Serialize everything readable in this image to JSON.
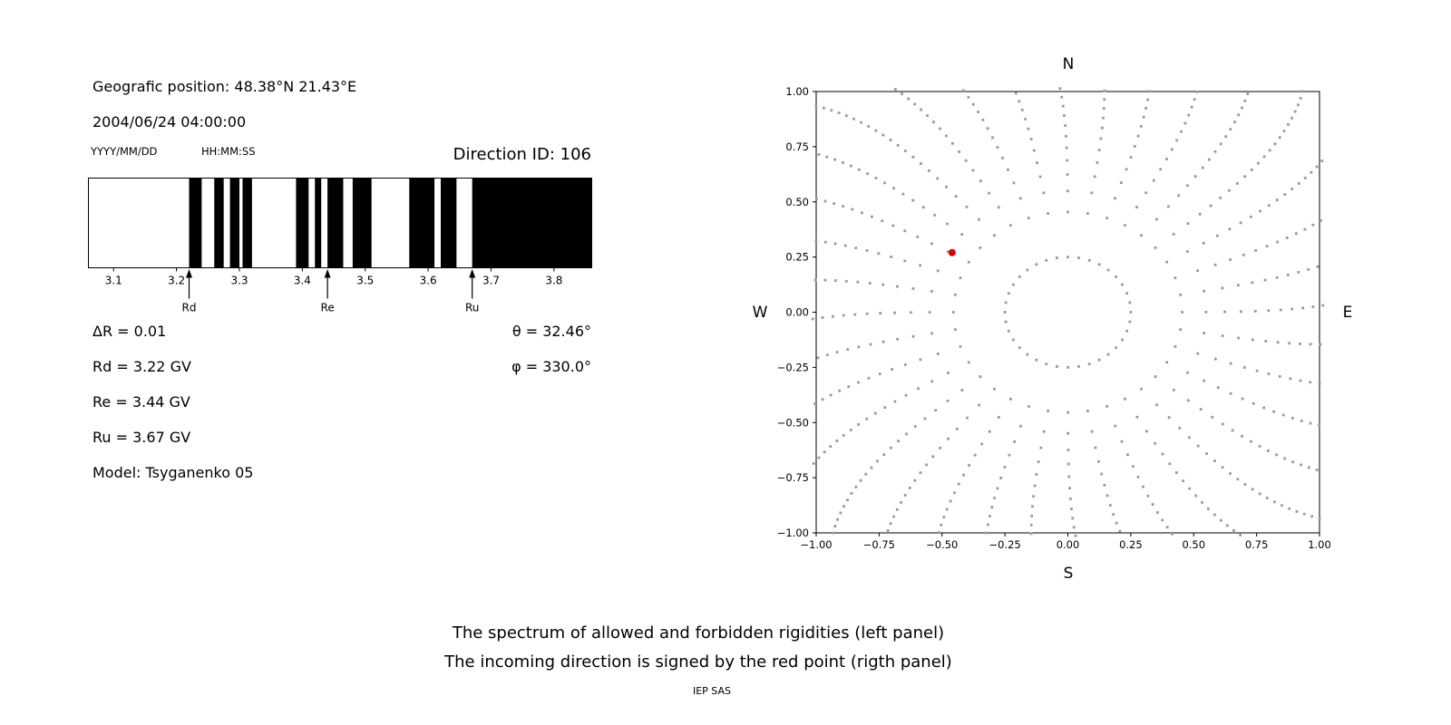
{
  "header": {
    "position": "Geografic position: 48.38°N 21.43°E",
    "datetime": "2004/06/24 04:00:00",
    "date_format": "YYYY/MM/DD",
    "time_format": "HH:MM:SS",
    "direction_id": "Direction ID: 106"
  },
  "parameters": {
    "delta_r": "ΔR = 0.01",
    "rd": "Rd = 3.22 GV",
    "re": "Re = 3.44 GV",
    "ru": "Ru = 3.67 GV",
    "model": "Model: Tsyganenko 05",
    "theta": "θ = 32.46°",
    "phi": "φ = 330.0°"
  },
  "caption": {
    "line1": "The spectrum of allowed and forbidden rigidities (left panel)",
    "line2": "The incoming direction is signed by the red point (rigth panel)",
    "credit": "IEP SAS"
  },
  "chart_data": [
    {
      "type": "bar",
      "subtype": "barcode-rigidity-spectrum",
      "xlim": [
        3.06,
        3.86
      ],
      "xticks": [
        3.1,
        3.2,
        3.3,
        3.4,
        3.5,
        3.6,
        3.7,
        3.8
      ],
      "xtick_labels": [
        "3.1",
        "3.2",
        "3.3",
        "3.4",
        "3.5",
        "3.6",
        "3.7",
        "3.8"
      ],
      "delta_r_gv": 0.01,
      "allowed_bands_gv": [
        [
          3.22,
          3.24
        ],
        [
          3.26,
          3.275
        ],
        [
          3.285,
          3.3
        ],
        [
          3.305,
          3.32
        ],
        [
          3.39,
          3.41
        ],
        [
          3.42,
          3.43
        ],
        [
          3.44,
          3.465
        ],
        [
          3.48,
          3.51
        ],
        [
          3.57,
          3.61
        ],
        [
          3.62,
          3.645
        ],
        [
          3.67,
          3.86
        ]
      ],
      "markers": [
        {
          "label": "Rd",
          "value": 3.22
        },
        {
          "label": "Re",
          "value": 3.44
        },
        {
          "label": "Ru",
          "value": 3.67
        }
      ],
      "bar_color": "#000000",
      "background": "#ffffff"
    },
    {
      "type": "scatter",
      "subtype": "incoming-direction-map",
      "xlim": [
        -1,
        1
      ],
      "ylim": [
        -1,
        1
      ],
      "xticks": [
        -1,
        -0.75,
        -0.5,
        -0.25,
        0,
        0.25,
        0.5,
        0.75,
        1
      ],
      "xtick_labels": [
        "−1.00",
        "−0.75",
        "−0.50",
        "−0.25",
        "0.00",
        "0.25",
        "0.50",
        "0.75",
        "1.00"
      ],
      "yticks": [
        -1,
        -0.75,
        -0.5,
        -0.25,
        0,
        0.25,
        0.5,
        0.75,
        1
      ],
      "ytick_labels": [
        "−1.00",
        "−0.75",
        "−0.50",
        "−0.25",
        "0.00",
        "0.25",
        "0.50",
        "0.75",
        "1.00"
      ],
      "compass": {
        "top": "N",
        "bottom": "S",
        "left": "W",
        "right": "E"
      },
      "dot_color": "#9a9a9a",
      "red_point": {
        "x": -0.46,
        "y": 0.27,
        "color": "#dd0000"
      },
      "spokes": {
        "count": 36,
        "start_deg": 0,
        "step_deg": 10,
        "r_inner": 0.25,
        "r_outer": 1.45,
        "points": 26,
        "cluster_exponent": 0.55,
        "curvature_deg": 9,
        "clip": 1.02
      }
    }
  ]
}
